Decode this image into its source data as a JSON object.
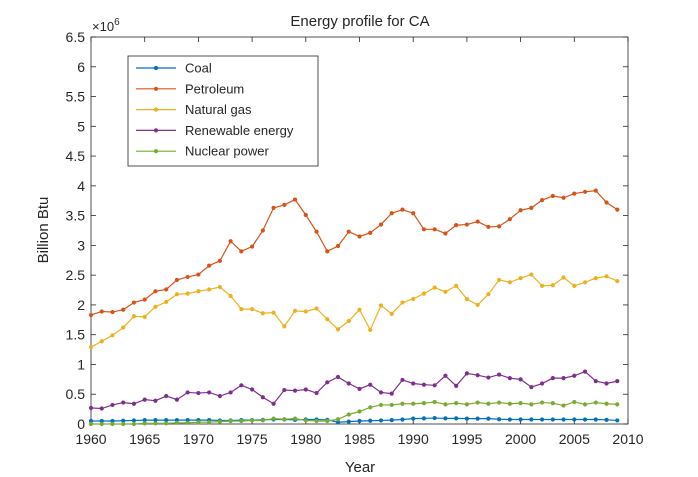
{
  "chart_data": {
    "type": "line",
    "title": "Energy profile for CA",
    "xlabel": "Year",
    "ylabel": "Billion Btu",
    "y_multiplier_label": "×10",
    "y_multiplier_exponent": "6",
    "xlim": [
      1960,
      2010
    ],
    "ylim": [
      0,
      6500000
    ],
    "xticks": [
      1960,
      1965,
      1970,
      1975,
      1980,
      1985,
      1990,
      1995,
      2000,
      2005,
      2010
    ],
    "yticks": [
      0,
      500000,
      1000000,
      1500000,
      2000000,
      2500000,
      3000000,
      3500000,
      4000000,
      4500000,
      5000000,
      5500000,
      6000000,
      6500000
    ],
    "ytick_labels": [
      "0",
      "0.5",
      "1",
      "1.5",
      "2",
      "2.5",
      "3",
      "3.5",
      "4",
      "4.5",
      "5",
      "5.5",
      "6",
      "6.5"
    ],
    "legend_position": "top-left",
    "grid": false,
    "x": [
      1960,
      1961,
      1962,
      1963,
      1964,
      1965,
      1966,
      1967,
      1968,
      1969,
      1970,
      1971,
      1972,
      1973,
      1974,
      1975,
      1976,
      1977,
      1978,
      1979,
      1980,
      1981,
      1982,
      1983,
      1984,
      1985,
      1986,
      1987,
      1988,
      1989,
      1990,
      1991,
      1992,
      1993,
      1994,
      1995,
      1996,
      1997,
      1998,
      1999,
      2000,
      2001,
      2002,
      2003,
      2004,
      2005,
      2006,
      2007,
      2008,
      2009
    ],
    "series": [
      {
        "name": "Coal",
        "color": "#0072BD",
        "values": [
          50000,
          50000,
          50000,
          55000,
          60000,
          65000,
          65000,
          65000,
          65000,
          65000,
          65000,
          65000,
          60000,
          60000,
          65000,
          65000,
          70000,
          75000,
          75000,
          70000,
          75000,
          75000,
          70000,
          30000,
          40000,
          50000,
          55000,
          60000,
          65000,
          75000,
          90000,
          95000,
          100000,
          95000,
          95000,
          90000,
          90000,
          90000,
          80000,
          75000,
          75000,
          75000,
          75000,
          75000,
          75000,
          75000,
          75000,
          75000,
          70000,
          60000
        ]
      },
      {
        "name": "Petroleum",
        "color": "#D95319",
        "values": [
          1830000,
          1890000,
          1880000,
          1920000,
          2040000,
          2090000,
          2230000,
          2260000,
          2420000,
          2470000,
          2510000,
          2660000,
          2740000,
          3070000,
          2900000,
          2980000,
          3250000,
          3630000,
          3680000,
          3770000,
          3510000,
          3230000,
          2900000,
          2990000,
          3230000,
          3150000,
          3210000,
          3350000,
          3540000,
          3600000,
          3540000,
          3270000,
          3270000,
          3200000,
          3340000,
          3350000,
          3400000,
          3310000,
          3320000,
          3440000,
          3590000,
          3630000,
          3760000,
          3830000,
          3800000,
          3870000,
          3900000,
          3920000,
          3720000,
          3600000
        ]
      },
      {
        "name": "Natural gas",
        "color": "#EDB120",
        "values": [
          1290000,
          1390000,
          1490000,
          1620000,
          1810000,
          1800000,
          1970000,
          2050000,
          2180000,
          2190000,
          2230000,
          2260000,
          2300000,
          2150000,
          1930000,
          1930000,
          1860000,
          1870000,
          1640000,
          1900000,
          1890000,
          1940000,
          1760000,
          1590000,
          1730000,
          1920000,
          1580000,
          1990000,
          1850000,
          2040000,
          2100000,
          2190000,
          2290000,
          2220000,
          2320000,
          2100000,
          2000000,
          2180000,
          2420000,
          2380000,
          2450000,
          2510000,
          2320000,
          2330000,
          2460000,
          2320000,
          2380000,
          2450000,
          2480000,
          2400000
        ]
      },
      {
        "name": "Renewable energy",
        "color": "#7E2F8E",
        "values": [
          270000,
          260000,
          320000,
          360000,
          340000,
          410000,
          390000,
          470000,
          410000,
          530000,
          520000,
          530000,
          470000,
          530000,
          650000,
          580000,
          450000,
          340000,
          570000,
          560000,
          580000,
          520000,
          700000,
          790000,
          680000,
          590000,
          660000,
          530000,
          510000,
          740000,
          680000,
          660000,
          650000,
          810000,
          640000,
          850000,
          820000,
          780000,
          830000,
          770000,
          750000,
          620000,
          680000,
          770000,
          770000,
          810000,
          880000,
          720000,
          680000,
          720000
        ]
      },
      {
        "name": "Nuclear power",
        "color": "#77AC30",
        "values": [
          0,
          0,
          0,
          0,
          0,
          10000,
          10000,
          10000,
          20000,
          20000,
          30000,
          30000,
          40000,
          50000,
          50000,
          60000,
          60000,
          90000,
          80000,
          90000,
          60000,
          50000,
          50000,
          80000,
          160000,
          210000,
          280000,
          320000,
          320000,
          340000,
          340000,
          350000,
          370000,
          330000,
          350000,
          330000,
          360000,
          340000,
          360000,
          340000,
          350000,
          330000,
          360000,
          350000,
          310000,
          370000,
          330000,
          360000,
          340000,
          330000
        ]
      }
    ]
  }
}
